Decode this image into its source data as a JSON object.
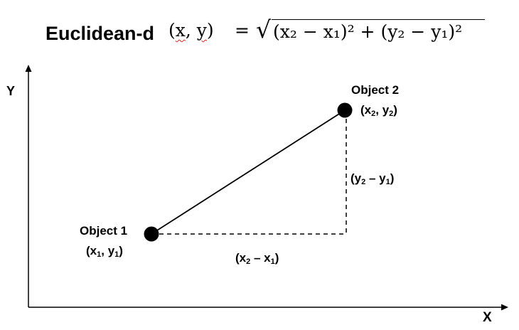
{
  "formula": {
    "name": "Euclidean-d",
    "args": "(x, y)",
    "arg_x": "x",
    "arg_y": "y",
    "equals": "=",
    "radicand": "(x₂ − x₁)² + (y₂ − y₁)²"
  },
  "axes": {
    "x_label": "X",
    "y_label": "Y"
  },
  "object1": {
    "name": "Object 1",
    "coord_open": "(x",
    "sub1": "1",
    "coord_mid": ", y",
    "sub2": "1",
    "coord_close": ")"
  },
  "object2": {
    "name": "Object 2",
    "coord_open": "(x",
    "sub1": "2",
    "coord_mid": ", y",
    "sub2": "2",
    "coord_close": ")"
  },
  "delta_x": {
    "open": "(x",
    "sub1": "2",
    "mid": " – x",
    "sub2": "1",
    "close": ")"
  },
  "delta_y": {
    "open": "(y",
    "sub1": "2",
    "mid": " – y",
    "sub2": "1",
    "close": ")"
  },
  "colors": {
    "stroke": "#000000",
    "spellcheck": "#e02020"
  }
}
